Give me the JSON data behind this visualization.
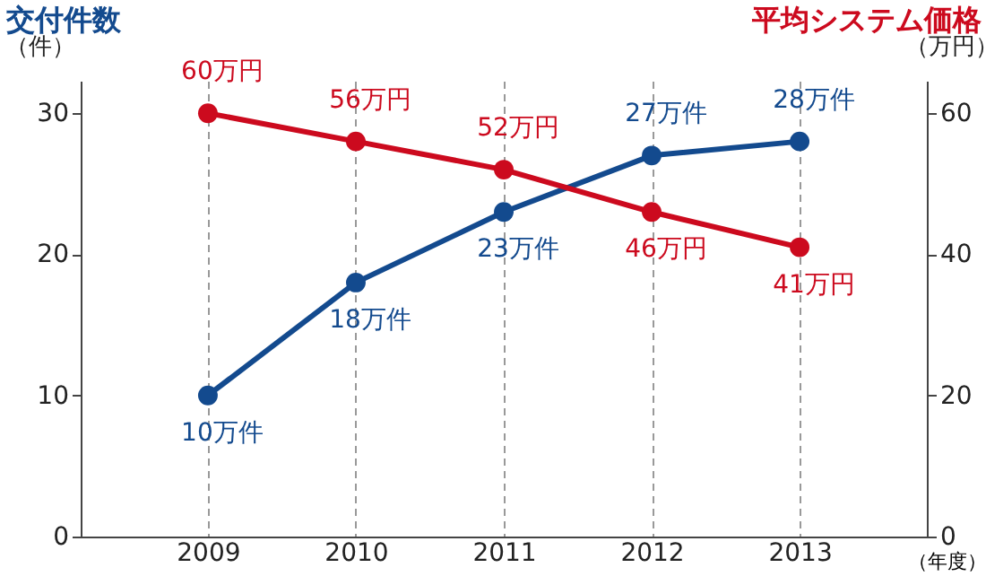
{
  "chart_data": {
    "type": "line",
    "ylabel": "交付件数",
    "y2label": "平均システム価格",
    "xlabel": "（年度）",
    "annotations": [
      "（件）",
      "（万円）"
    ],
    "categories": [
      "2009",
      "2010",
      "2011",
      "2012",
      "2013"
    ],
    "series": [
      {
        "name": null,
        "color": "#134a8e",
        "values": [
          10,
          18,
          23,
          27,
          28
        ],
        "value_labels": [
          "10万件",
          "18万件",
          "23万件",
          "27万件",
          "28万件"
        ]
      },
      {
        "name": null,
        "color": "#cc0a1e",
        "axis": "y2",
        "values": [
          60,
          56,
          52,
          46,
          41
        ],
        "value_labels": [
          "60万円",
          "56万円",
          "52万円",
          "46万円",
          "41万円"
        ]
      }
    ],
    "ylim": [
      0,
      32.3
    ],
    "yticks": [
      0,
      10,
      20,
      30
    ],
    "y2lim": [
      0,
      64.6
    ],
    "y2ticks": [
      0,
      20,
      40,
      60
    ],
    "grid": "x",
    "marker": "circle",
    "line_style": "solid"
  }
}
